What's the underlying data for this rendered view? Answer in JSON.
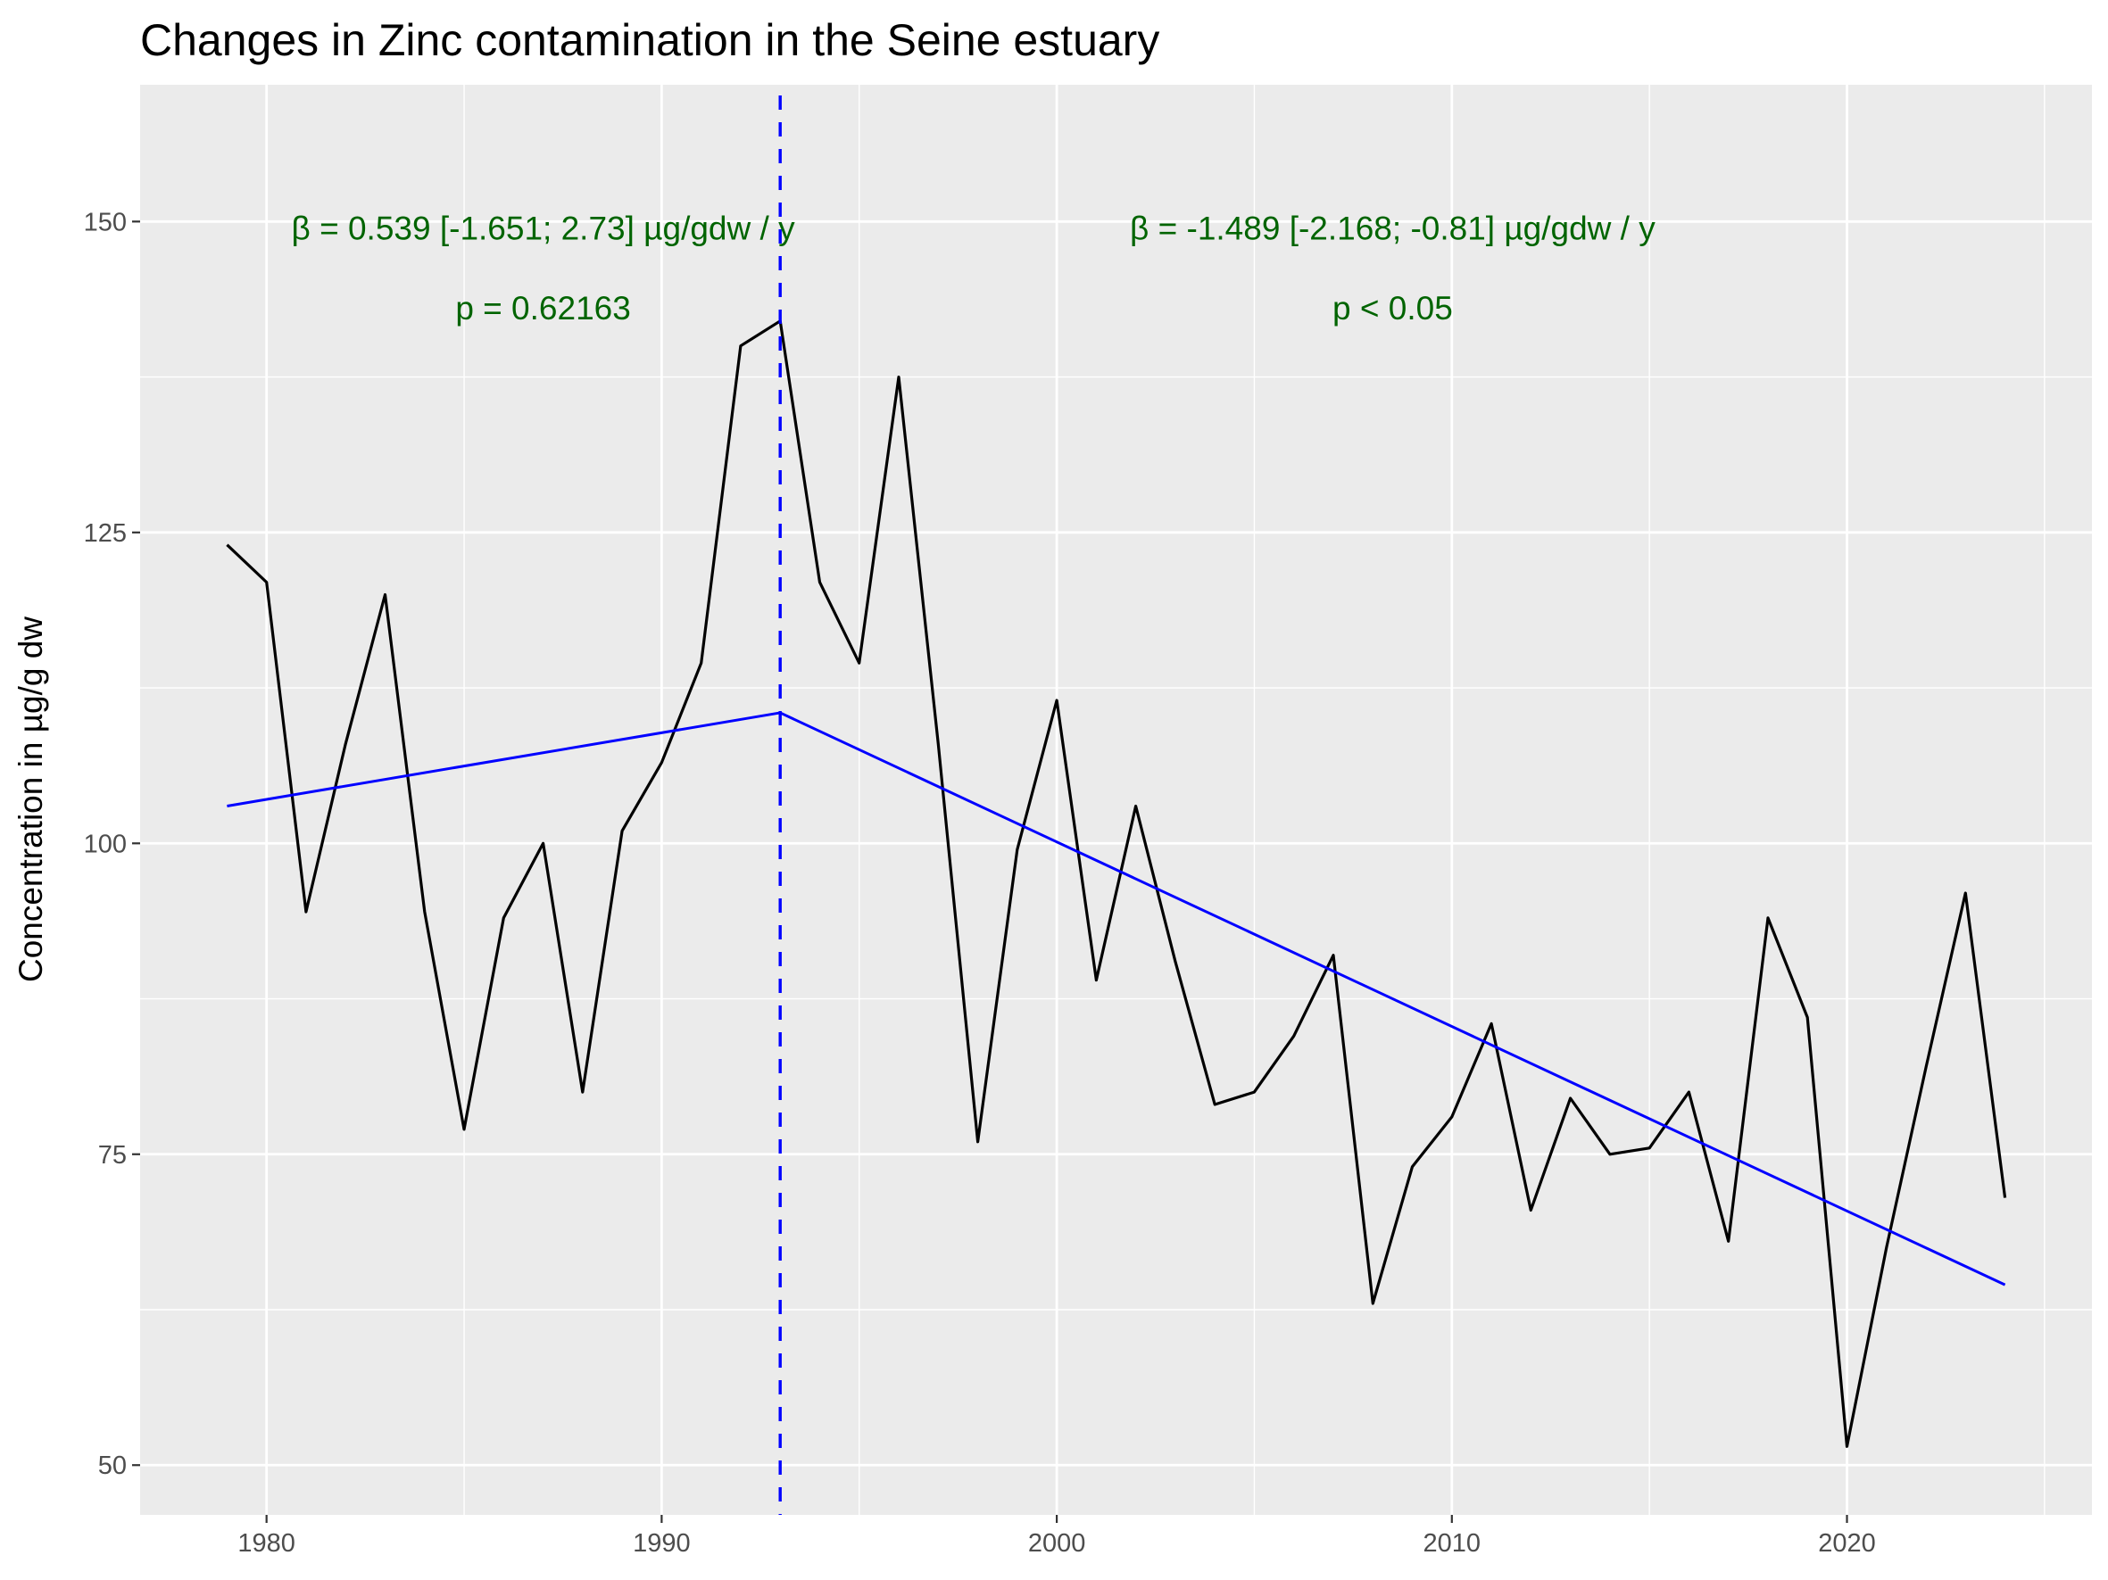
{
  "chart_data": {
    "type": "line",
    "title": "Changes in Zinc contamination in the Seine estuary",
    "xlabel": "",
    "ylabel": "Concentration in µg/g dw",
    "xlim": [
      1976.8,
      2026.2
    ],
    "ylim": [
      46,
      161
    ],
    "x_ticks": [
      1980,
      1990,
      2000,
      2010,
      2020
    ],
    "x_minor_ticks": [
      1985,
      1995,
      2005,
      2015,
      2025
    ],
    "y_ticks": [
      50,
      75,
      100,
      125,
      150
    ],
    "y_minor_ticks": [
      62.5,
      87.5,
      112.5,
      137.5
    ],
    "grid": true,
    "background": "#ebebeb",
    "series": [
      {
        "color": "#000000",
        "x": [
          1979,
          1980,
          1981,
          1982,
          1983,
          1984,
          1985,
          1986,
          1987,
          1988,
          1989,
          1990,
          1991,
          1992,
          1993,
          1994,
          1995,
          1996,
          1997,
          1998,
          1999,
          2000,
          2001,
          2002,
          2003,
          2004,
          2005,
          2006,
          2007,
          2008,
          2009,
          2010,
          2011,
          2012,
          2013,
          2014,
          2015,
          2016,
          2017,
          2018,
          2019,
          2020,
          2021,
          2022,
          2023,
          2024
        ],
        "y": [
          124,
          121,
          94.5,
          108,
          120,
          94.5,
          77,
          94,
          100,
          80,
          101,
          106.5,
          114.5,
          140,
          142,
          121,
          114.5,
          137.5,
          108,
          76,
          99.5,
          111.5,
          89,
          103,
          90.5,
          79,
          80,
          84.5,
          91,
          63,
          74,
          78,
          85.5,
          70.5,
          79.5,
          75,
          75.5,
          80,
          68,
          94,
          86,
          51.5,
          67.5,
          82,
          96,
          71.5
        ]
      }
    ],
    "trend_segments": [
      {
        "color": "#0000ff",
        "x": [
          1979,
          1993
        ],
        "y": [
          103,
          110.5
        ]
      },
      {
        "color": "#0000ff",
        "x": [
          1993,
          2024
        ],
        "y": [
          110.5,
          64.5
        ]
      }
    ],
    "breakpoint": {
      "x": 1993,
      "color": "#0000ff",
      "style": "dashed"
    },
    "annotations": [
      {
        "color": "#006400",
        "x": 1987,
        "line1": "β = 0.539 [-1.651; 2.73] µg/gdw / y",
        "line2": "p = 0.62163",
        "y1": 149.5,
        "y2": 145
      },
      {
        "color": "#006400",
        "x": 2008.5,
        "line1": "β = -1.489 [-2.168; -0.81] µg/gdw / y",
        "line2": "p < 0.05",
        "y1": 149.5,
        "y2": 145
      }
    ]
  }
}
